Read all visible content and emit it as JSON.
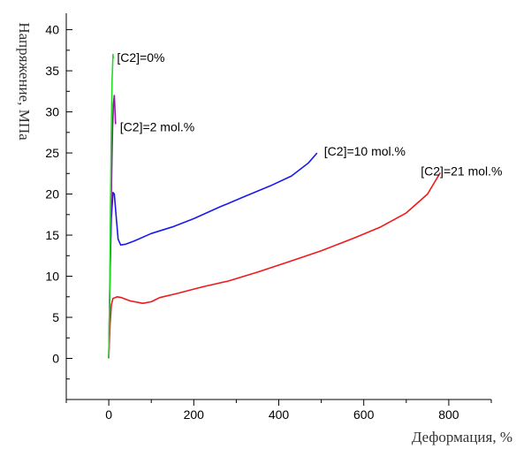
{
  "chart_data": {
    "type": "line",
    "xlabel": "Деформация, %",
    "ylabel": "Напряжение, МПа",
    "xlim": [
      -100,
      900
    ],
    "ylim": [
      -5,
      42
    ],
    "xticks": [
      0,
      200,
      400,
      600,
      800
    ],
    "yticks": [
      0,
      5,
      10,
      15,
      20,
      25,
      30,
      35,
      40
    ],
    "grid": false,
    "series": [
      {
        "name": "[C2]=0%",
        "color": "#22dd22",
        "x": [
          0,
          2,
          4,
          6,
          8,
          10,
          11
        ],
        "y": [
          0,
          8,
          18,
          28,
          34,
          37,
          36.5
        ]
      },
      {
        "name": "[C2]=2 mol.%",
        "color": "#8a1a9a",
        "x": [
          0,
          3,
          6,
          9,
          11,
          13,
          16
        ],
        "y": [
          0,
          10,
          20,
          28,
          31,
          32,
          28.5
        ]
      },
      {
        "name": "[C2]=10 mol.%",
        "color": "#1a1aee",
        "x": [
          0,
          3,
          6,
          10,
          13,
          17,
          22,
          28,
          40,
          60,
          100,
          150,
          200,
          260,
          320,
          380,
          430,
          470,
          490
        ],
        "y": [
          0,
          10,
          17,
          20.2,
          20,
          17.5,
          14.5,
          13.8,
          13.9,
          14.3,
          15.2,
          16,
          17,
          18.4,
          19.7,
          21,
          22.2,
          23.8,
          25
        ]
      },
      {
        "name": "[C2]=21 mol.%",
        "color": "#ee1a1a",
        "x": [
          0,
          3,
          6,
          10,
          15,
          20,
          30,
          50,
          80,
          100,
          120,
          160,
          220,
          280,
          350,
          420,
          500,
          580,
          640,
          700,
          750,
          780
        ],
        "y": [
          0,
          4,
          6.5,
          7.3,
          7.4,
          7.5,
          7.4,
          7,
          6.7,
          6.9,
          7.4,
          7.9,
          8.7,
          9.4,
          10.5,
          11.7,
          13.1,
          14.7,
          16,
          17.7,
          20,
          22.6
        ]
      }
    ]
  }
}
